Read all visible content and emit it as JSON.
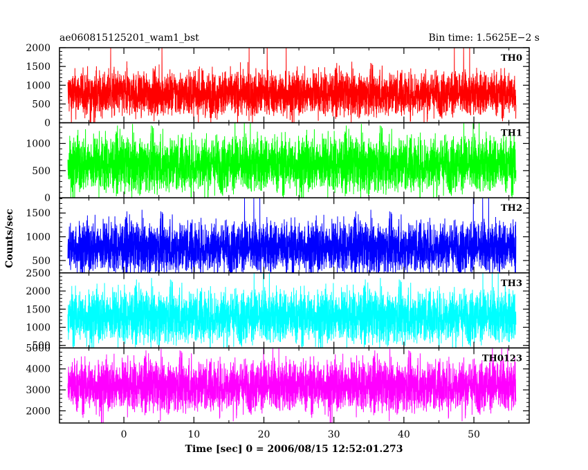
{
  "header": {
    "left_title": "ae060815125201_wam1_bst",
    "right_title": "Bin time: 1.5625E−2 s"
  },
  "chart_data": {
    "type": "line",
    "title_left": "ae060815125201_wam1_bst",
    "title_right": "Bin time: 1.5625E−2 s",
    "xlabel": "Time [sec] 0 = 2006/08/15 12:52:01.273",
    "ylabel": "Counts/sec",
    "xlim": [
      -9.2,
      57.9
    ],
    "x_ticks": [
      0,
      10,
      20,
      30,
      40,
      50
    ],
    "x_tick_labels": [
      "0",
      "10",
      "20",
      "30",
      "40",
      "50"
    ],
    "data_x_range": [
      -8.0,
      56.0
    ],
    "bin_time_s": 0.015625,
    "grid": false,
    "panels": [
      {
        "name": "TH0",
        "color": "#ff0000",
        "ylim": [
          0,
          2000
        ],
        "y_ticks": [
          0,
          500,
          1000,
          1500,
          2000
        ],
        "y_tick_labels": [
          "0",
          "500",
          "1000",
          "1500",
          "2000"
        ],
        "mean": 780,
        "typical_range": [
          200,
          1600
        ],
        "max_spike": 2000
      },
      {
        "name": "TH1",
        "color": "#00ff00",
        "ylim": [
          0,
          1380
        ],
        "y_ticks": [
          0,
          500,
          1000
        ],
        "y_tick_labels": [
          "0",
          "500",
          "1000"
        ],
        "mean": 620,
        "typical_range": [
          80,
          1300
        ],
        "max_spike": 1380
      },
      {
        "name": "TH2",
        "color": "#0000ff",
        "ylim": [
          240,
          1820
        ],
        "y_ticks": [
          500,
          1000,
          1500
        ],
        "y_tick_labels": [
          "500",
          "1000",
          "1500"
        ],
        "mean": 780,
        "typical_range": [
          300,
          1600
        ],
        "max_spike": 1820
      },
      {
        "name": "TH3",
        "color": "#00ffff",
        "ylim": [
          430,
          2500
        ],
        "y_ticks": [
          500,
          1000,
          1500,
          2000,
          2500
        ],
        "y_tick_labels": [
          "500",
          "1000",
          "1500",
          "2000",
          "2500"
        ],
        "mean": 1300,
        "typical_range": [
          550,
          2300
        ],
        "max_spike": 2500
      },
      {
        "name": "TH0123",
        "color": "#ff00ff",
        "ylim": [
          1420,
          5000
        ],
        "y_ticks": [
          2000,
          3000,
          4000,
          5000
        ],
        "y_tick_labels": [
          "2000",
          "3000",
          "4000",
          "5000"
        ],
        "mean": 3200,
        "typical_range": [
          1800,
          4700
        ],
        "max_spike": 5000
      }
    ]
  }
}
